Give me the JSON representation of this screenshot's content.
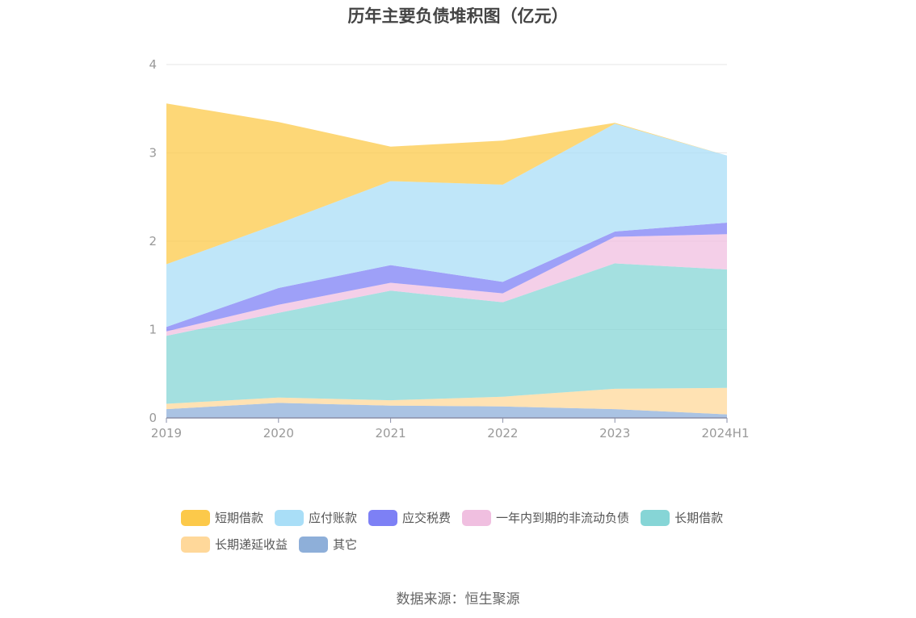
{
  "chart_title": "历年主要负债堆积图（亿元）",
  "source_label": "数据来源：恒生聚源",
  "chart_data": {
    "type": "area",
    "stacked": true,
    "title": "历年主要负债堆积图（亿元）",
    "xlabel": "",
    "ylabel": "",
    "categories": [
      "2019",
      "2020",
      "2021",
      "2022",
      "2023",
      "2024H1"
    ],
    "ylim": [
      0,
      4
    ],
    "yticks": [
      "0",
      "1",
      "2",
      "3",
      "4"
    ],
    "grid": true,
    "legend_position": "bottom",
    "series": [
      {
        "name": "其它",
        "color": "#8eafd9",
        "values": [
          0.1,
          0.17,
          0.14,
          0.13,
          0.1,
          0.04
        ]
      },
      {
        "name": "长期递延收益",
        "color": "#ffd89a",
        "values": [
          0.06,
          0.06,
          0.06,
          0.11,
          0.23,
          0.3
        ]
      },
      {
        "name": "长期借款",
        "color": "#86d5d6",
        "values": [
          0.77,
          0.96,
          1.24,
          1.07,
          1.42,
          1.34
        ]
      },
      {
        "name": "一年内到期的非流动负债",
        "color": "#f0bfe0",
        "values": [
          0.05,
          0.09,
          0.09,
          0.1,
          0.3,
          0.4
        ]
      },
      {
        "name": "应交税费",
        "color": "#7d80f5",
        "values": [
          0.05,
          0.19,
          0.2,
          0.13,
          0.06,
          0.13
        ]
      },
      {
        "name": "应付账款",
        "color": "#a9def7",
        "values": [
          0.71,
          0.73,
          0.95,
          1.1,
          1.22,
          0.76
        ]
      },
      {
        "name": "短期借款",
        "color": "#fcc94a",
        "values": [
          1.82,
          1.15,
          0.39,
          0.5,
          0.01,
          0.0
        ]
      }
    ],
    "legend_order": [
      "短期借款",
      "应付账款",
      "应交税费",
      "一年内到期的非流动负债",
      "长期借款",
      "长期递延收益",
      "其它"
    ]
  }
}
